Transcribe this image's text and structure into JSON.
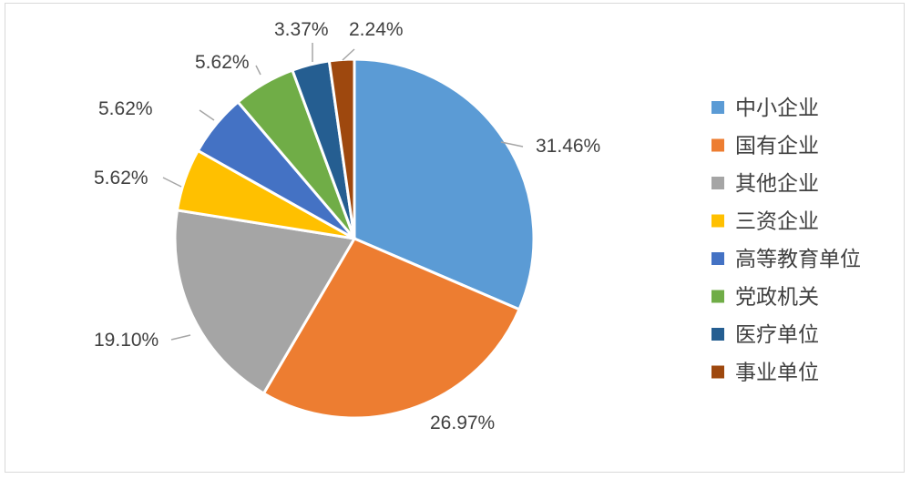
{
  "chart_data": {
    "type": "pie",
    "title": "",
    "categories": [
      "中小企业",
      "国有企业",
      "其他企业",
      "三资企业",
      "高等教育单位",
      "党政机关",
      "医疗单位",
      "事业单位"
    ],
    "values": [
      31.46,
      26.97,
      19.1,
      5.62,
      5.62,
      5.62,
      3.37,
      2.24
    ],
    "labels": [
      "31.46%",
      "26.97%",
      "19.10%",
      "5.62%",
      "5.62%",
      "5.62%",
      "3.37%",
      "2.24%"
    ],
    "colors": [
      "#5b9bd5",
      "#ed7d31",
      "#a5a5a5",
      "#ffc000",
      "#4472c4",
      "#70ad47",
      "#255e91",
      "#9e480e"
    ],
    "start_angle": "12 o'clock",
    "direction": "clockwise",
    "legend": "right"
  }
}
